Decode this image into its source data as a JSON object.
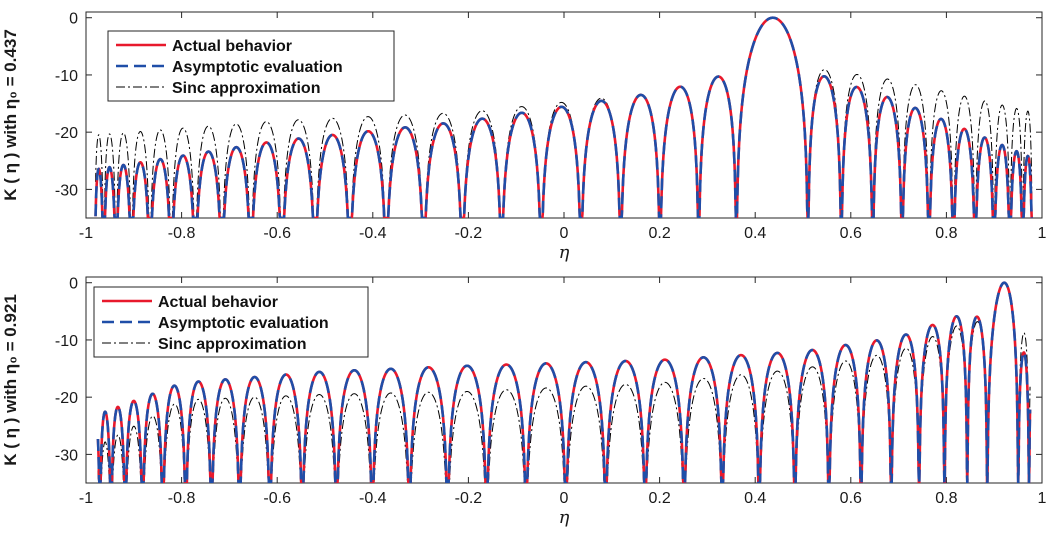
{
  "chart_data": [
    {
      "type": "line",
      "xlabel": "η",
      "ylabel": "K ( η )  with  η₀ = 0.437",
      "eta0": 0.437,
      "xlim": [
        -1,
        1
      ],
      "ylim": [
        -35,
        1
      ],
      "xticks": [
        -1,
        -0.8,
        -0.6,
        -0.4,
        -0.2,
        0,
        0.2,
        0.4,
        0.6,
        0.8,
        1
      ],
      "xticklabels": [
        "-1",
        "-0.8",
        "-0.6",
        "-0.4",
        "-0.2",
        "0",
        "0.2",
        "0.4",
        "0.6",
        "0.8",
        "1"
      ],
      "yticks": [
        0,
        -10,
        -20,
        -30
      ],
      "yticklabels": [
        "0",
        "-10",
        "-20",
        "-30"
      ],
      "x_domain": [
        -0.98,
        0.98
      ],
      "legend_position": "top-left",
      "series": [
        {
          "name": "Actual behavior",
          "color": "#e8192c",
          "style": "solid",
          "width": 2.6,
          "main_lobe_peak": [
            0.437,
            0
          ],
          "envelope": [
            [
              -0.98,
              -26.5
            ],
            [
              -0.6,
              -21.5
            ],
            [
              -0.2,
              -18
            ],
            [
              0.2,
              -13
            ],
            [
              0.38,
              -9
            ],
            [
              0.5,
              -9
            ],
            [
              0.7,
              -14.5
            ],
            [
              0.98,
              -24.5
            ]
          ]
        },
        {
          "name": "Asymptotic evaluation",
          "color": "#1f4ea8",
          "style": "dash",
          "width": 2.6,
          "main_lobe_peak": [
            0.437,
            0
          ],
          "envelope": [
            [
              -0.98,
              -26.5
            ],
            [
              -0.6,
              -21.5
            ],
            [
              -0.2,
              -18
            ],
            [
              0.2,
              -13
            ],
            [
              0.38,
              -9
            ],
            [
              0.5,
              -9
            ],
            [
              0.7,
              -14.5
            ],
            [
              0.98,
              -24.5
            ]
          ]
        },
        {
          "name": "Sinc approximation",
          "color": "#000000",
          "style": "dashdot",
          "width": 1.0,
          "main_lobe_peak": [
            0.437,
            0
          ],
          "envelope": [
            [
              -0.98,
              -20.5
            ],
            [
              -0.6,
              -18
            ],
            [
              -0.2,
              -16.5
            ],
            [
              0.2,
              -13
            ],
            [
              0.38,
              -9
            ],
            [
              0.5,
              -8.5
            ],
            [
              0.7,
              -11
            ],
            [
              0.98,
              -16.5
            ]
          ]
        }
      ]
    },
    {
      "type": "line",
      "xlabel": "η",
      "ylabel": "K ( η )  with  η₀ = 0.921",
      "eta0": 0.921,
      "xlim": [
        -1,
        1
      ],
      "ylim": [
        -35,
        1
      ],
      "xticks": [
        -1,
        -0.8,
        -0.6,
        -0.4,
        -0.2,
        0,
        0.2,
        0.4,
        0.6,
        0.8,
        1
      ],
      "xticklabels": [
        "-1",
        "-0.8",
        "-0.6",
        "-0.4",
        "-0.2",
        "0",
        "0.2",
        "0.4",
        "0.6",
        "0.8",
        "1"
      ],
      "yticks": [
        0,
        -10,
        -20,
        -30
      ],
      "yticklabels": [
        "0",
        "-10",
        "-20",
        "-30"
      ],
      "x_domain": [
        -0.975,
        0.975
      ],
      "legend_position": "top-left",
      "series": [
        {
          "name": "Actual behavior",
          "color": "#e8192c",
          "style": "solid",
          "width": 2.6,
          "main_lobe_peak": [
            0.921,
            0
          ],
          "envelope": [
            [
              -0.975,
              -23
            ],
            [
              -0.8,
              -17.5
            ],
            [
              -0.5,
              -15.5
            ],
            [
              -0.2,
              -14.5
            ],
            [
              0.2,
              -13.5
            ],
            [
              0.5,
              -12
            ],
            [
              0.7,
              -9.5
            ],
            [
              0.85,
              -5
            ],
            [
              0.975,
              -13
            ]
          ]
        },
        {
          "name": "Asymptotic evaluation",
          "color": "#1f4ea8",
          "style": "dash",
          "width": 2.6,
          "main_lobe_peak": [
            0.921,
            0
          ],
          "envelope": [
            [
              -0.975,
              -23
            ],
            [
              -0.8,
              -17.5
            ],
            [
              -0.5,
              -15.5
            ],
            [
              -0.2,
              -14.5
            ],
            [
              0.2,
              -13.5
            ],
            [
              0.5,
              -12
            ],
            [
              0.7,
              -9.5
            ],
            [
              0.85,
              -5
            ],
            [
              0.975,
              -13
            ]
          ]
        },
        {
          "name": "Sinc approximation",
          "color": "#000000",
          "style": "dashdot",
          "width": 1.0,
          "main_lobe_peak": [
            0.921,
            0
          ],
          "envelope": [
            [
              -0.975,
              -28.5
            ],
            [
              -0.8,
              -20.5
            ],
            [
              -0.5,
              -19.5
            ],
            [
              -0.2,
              -19
            ],
            [
              0.2,
              -17.5
            ],
            [
              0.5,
              -15
            ],
            [
              0.7,
              -12
            ],
            [
              0.85,
              -6.5
            ],
            [
              0.975,
              -9
            ]
          ]
        }
      ]
    }
  ]
}
